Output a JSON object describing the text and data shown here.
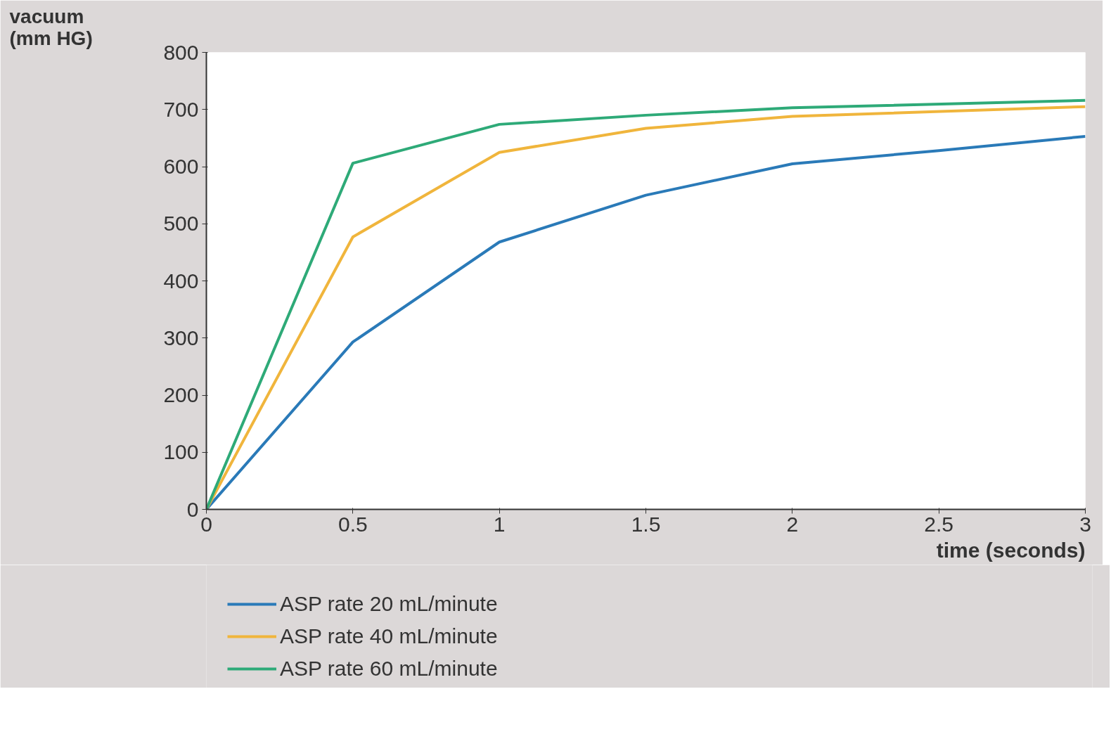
{
  "chart_data": {
    "type": "line",
    "ylabel": "vacuum\n(mm HG)",
    "xlabel": "time (seconds)",
    "xlim": [
      0,
      3
    ],
    "xticks": [
      0,
      0.5,
      1,
      1.5,
      2,
      2.5,
      3
    ],
    "ylim": [
      0,
      800
    ],
    "yticks": [
      0,
      100,
      200,
      300,
      400,
      500,
      600,
      700,
      800
    ],
    "grid": false,
    "legend": "bottom",
    "marker": "none",
    "line_style": "solid",
    "series": [
      {
        "name": "ASP rate 20 mL/minute",
        "color": "#2a7ab8",
        "x": [
          0,
          0.5,
          1,
          1.5,
          2,
          2.5,
          3
        ],
        "values": [
          0,
          293,
          468,
          550,
          605,
          628,
          653
        ]
      },
      {
        "name": "ASP rate 40 mL/minute",
        "color": "#f0b53c",
        "x": [
          0,
          0.5,
          1,
          1.5,
          2,
          3
        ],
        "values": [
          0,
          477,
          625,
          667,
          688,
          705
        ]
      },
      {
        "name": "ASP rate 60 mL/minute",
        "color": "#2eaa78",
        "x": [
          0,
          0.5,
          1,
          1.5,
          2,
          3
        ],
        "values": [
          0,
          606,
          674,
          690,
          703,
          716
        ]
      }
    ]
  }
}
